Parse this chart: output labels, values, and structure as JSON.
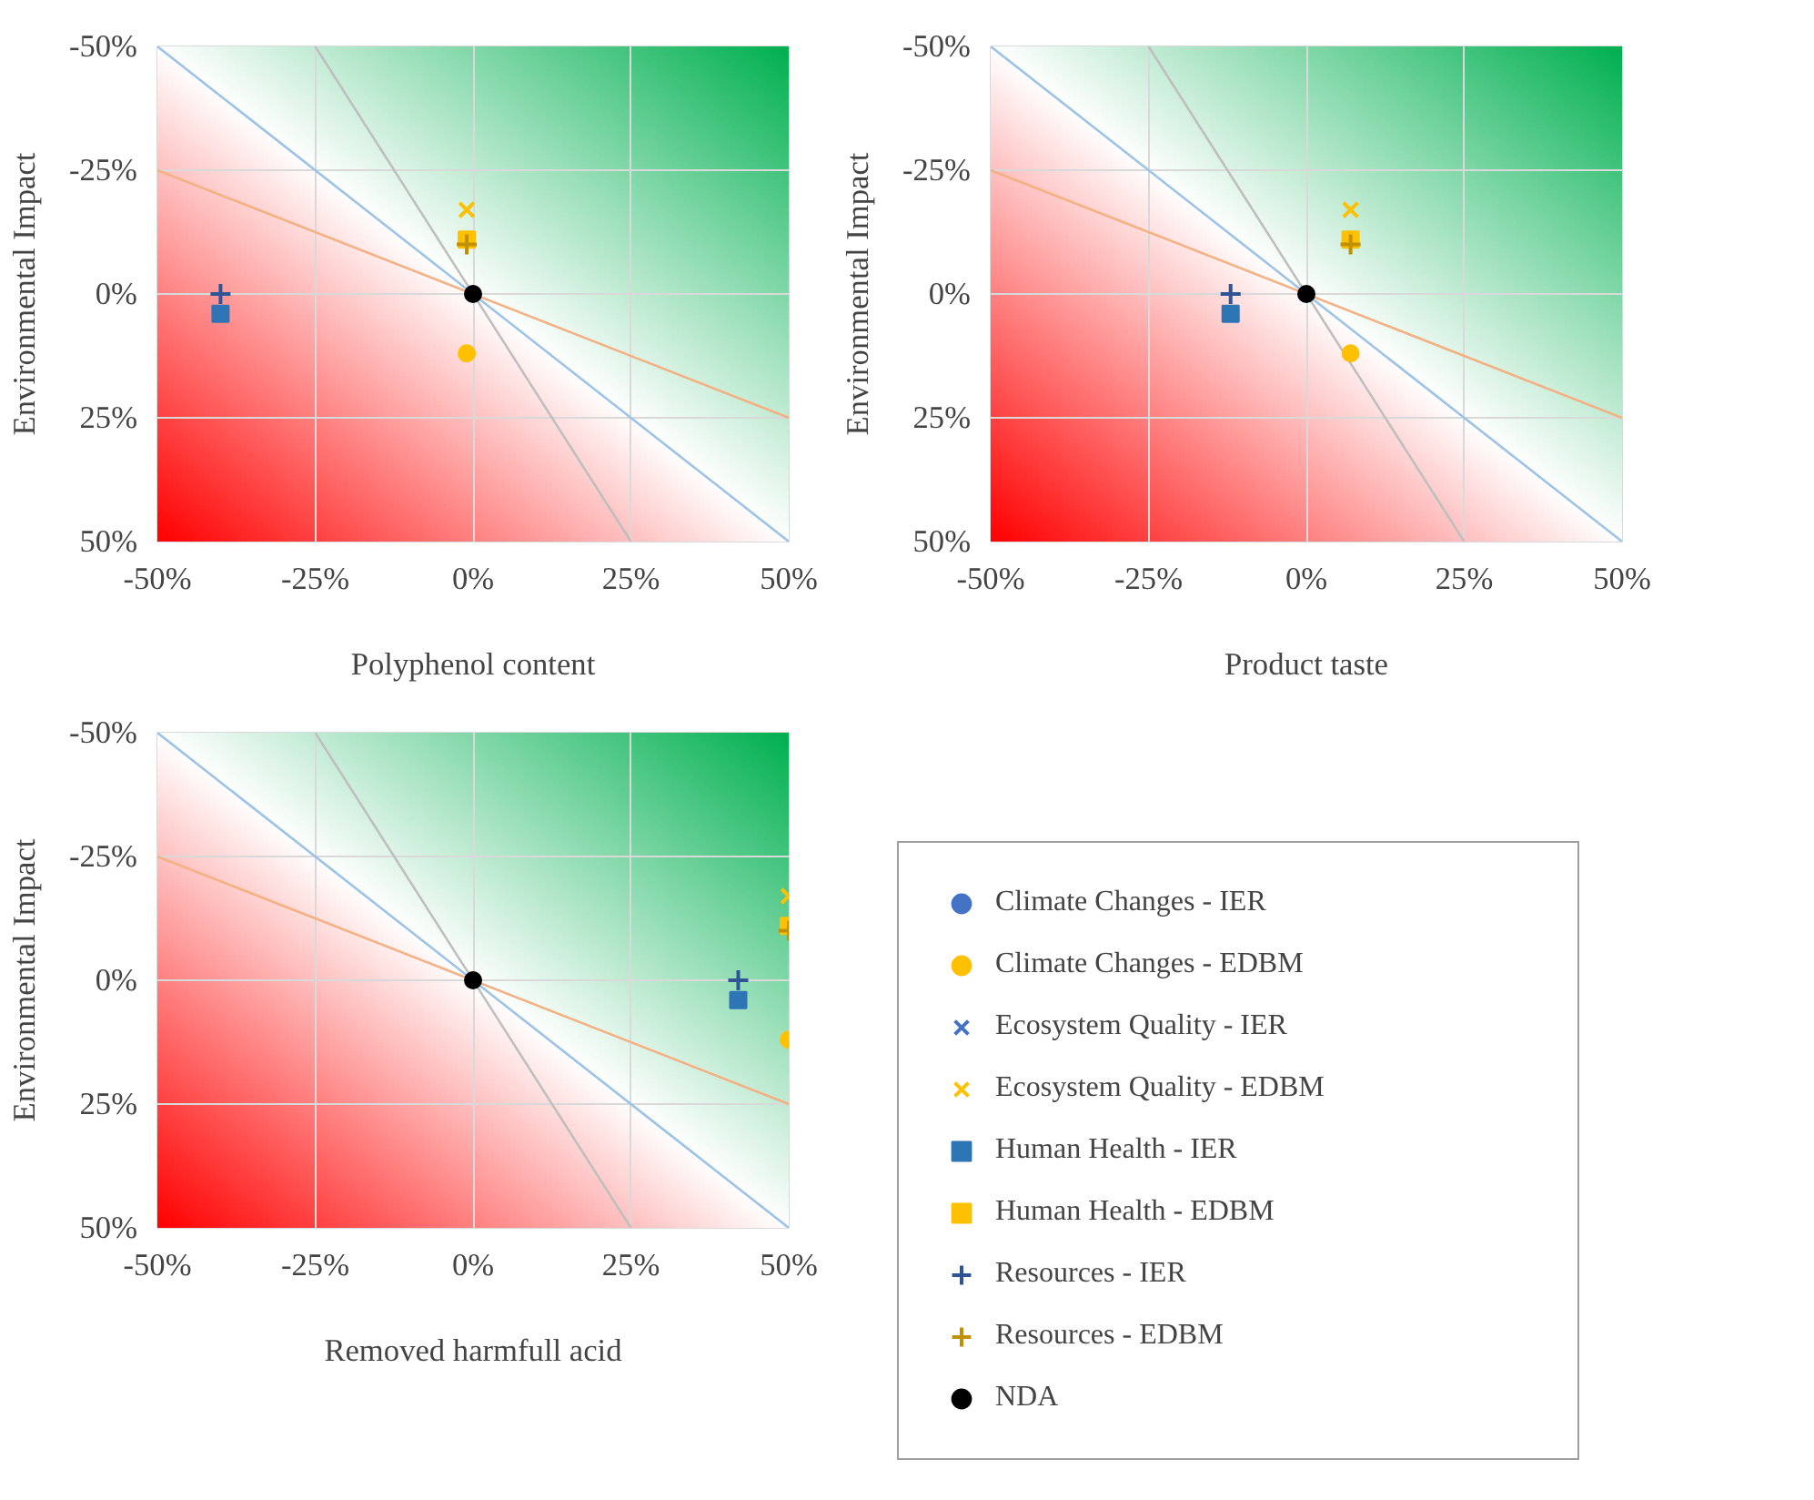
{
  "chart_data": [
    {
      "type": "scatter",
      "xlabel": "Polyphenol content",
      "ylabel": "Environmental Impact",
      "xlim": [
        -50,
        50
      ],
      "ylim": [
        50,
        -50
      ],
      "xticks": [
        {
          "value": -50,
          "label": "-50%"
        },
        {
          "value": -25,
          "label": "-25%"
        },
        {
          "value": 0,
          "label": "0%"
        },
        {
          "value": 25,
          "label": "25%"
        },
        {
          "value": 50,
          "label": "50%"
        }
      ],
      "yticks": [
        {
          "value": -50,
          "label": "-50%"
        },
        {
          "value": -25,
          "label": "-25%"
        },
        {
          "value": 0,
          "label": "0%"
        },
        {
          "value": 25,
          "label": "25%"
        },
        {
          "value": 50,
          "label": "50%"
        }
      ],
      "grid": true,
      "legend": false,
      "series": [
        {
          "type": "line",
          "color": "#9dc3e6",
          "marker": "none",
          "x": [
            -50,
            50
          ],
          "values": [
            -50,
            50
          ]
        },
        {
          "type": "line",
          "color": "#f4b183",
          "marker": "none",
          "x": [
            -50,
            50
          ],
          "values": [
            -25,
            25
          ]
        },
        {
          "type": "line",
          "color": "#bfbfbf",
          "marker": "none",
          "x": [
            -25,
            25
          ],
          "values": [
            -50,
            50
          ]
        },
        {
          "color": "#ffc000",
          "marker": "circle",
          "x": [
            -1
          ],
          "values": [
            12
          ]
        },
        {
          "color": "#ffc000",
          "marker": "cross",
          "x": [
            -1
          ],
          "values": [
            -17
          ]
        },
        {
          "color": "#2e75b6",
          "marker": "square",
          "x": [
            -40
          ],
          "values": [
            4
          ]
        },
        {
          "color": "#ffc000",
          "marker": "square",
          "x": [
            -1
          ],
          "values": [
            -11
          ]
        },
        {
          "color": "#2f5597",
          "marker": "plus",
          "x": [
            -40
          ],
          "values": [
            0
          ]
        },
        {
          "color": "#bf9000",
          "marker": "plus",
          "x": [
            -1
          ],
          "values": [
            -10
          ]
        },
        {
          "color": "#000000",
          "marker": "circle",
          "x": [
            0
          ],
          "values": [
            0
          ]
        }
      ]
    },
    {
      "type": "scatter",
      "xlabel": "Product taste",
      "ylabel": "Environmental Impact",
      "xlim": [
        -50,
        50
      ],
      "ylim": [
        50,
        -50
      ],
      "xticks": [
        {
          "value": -50,
          "label": "-50%"
        },
        {
          "value": -25,
          "label": "-25%"
        },
        {
          "value": 0,
          "label": "0%"
        },
        {
          "value": 25,
          "label": "25%"
        },
        {
          "value": 50,
          "label": "50%"
        }
      ],
      "yticks": [
        {
          "value": -50,
          "label": "-50%"
        },
        {
          "value": -25,
          "label": "-25%"
        },
        {
          "value": 0,
          "label": "0%"
        },
        {
          "value": 25,
          "label": "25%"
        },
        {
          "value": 50,
          "label": "50%"
        }
      ],
      "grid": true,
      "legend": false,
      "series": [
        {
          "type": "line",
          "color": "#9dc3e6",
          "marker": "none",
          "x": [
            -50,
            50
          ],
          "values": [
            -50,
            50
          ]
        },
        {
          "type": "line",
          "color": "#f4b183",
          "marker": "none",
          "x": [
            -50,
            50
          ],
          "values": [
            -25,
            25
          ]
        },
        {
          "type": "line",
          "color": "#bfbfbf",
          "marker": "none",
          "x": [
            -25,
            25
          ],
          "values": [
            -50,
            50
          ]
        },
        {
          "color": "#ffc000",
          "marker": "circle",
          "x": [
            7
          ],
          "values": [
            12
          ]
        },
        {
          "color": "#ffc000",
          "marker": "cross",
          "x": [
            7
          ],
          "values": [
            -17
          ]
        },
        {
          "color": "#2e75b6",
          "marker": "square",
          "x": [
            -12
          ],
          "values": [
            4
          ]
        },
        {
          "color": "#ffc000",
          "marker": "square",
          "x": [
            7
          ],
          "values": [
            -11
          ]
        },
        {
          "color": "#2f5597",
          "marker": "plus",
          "x": [
            -12
          ],
          "values": [
            0
          ]
        },
        {
          "color": "#bf9000",
          "marker": "plus",
          "x": [
            7
          ],
          "values": [
            -10
          ]
        },
        {
          "color": "#000000",
          "marker": "circle",
          "x": [
            0
          ],
          "values": [
            0
          ]
        }
      ]
    },
    {
      "type": "scatter",
      "xlabel": "Removed harmfull acid",
      "ylabel": "Environmental Impact",
      "xlim": [
        -50,
        50
      ],
      "ylim": [
        50,
        -50
      ],
      "xticks": [
        {
          "value": -50,
          "label": "-50%"
        },
        {
          "value": -25,
          "label": "-25%"
        },
        {
          "value": 0,
          "label": "0%"
        },
        {
          "value": 25,
          "label": "25%"
        },
        {
          "value": 50,
          "label": "50%"
        }
      ],
      "yticks": [
        {
          "value": -50,
          "label": "-50%"
        },
        {
          "value": -25,
          "label": "-25%"
        },
        {
          "value": 0,
          "label": "0%"
        },
        {
          "value": 25,
          "label": "25%"
        },
        {
          "value": 50,
          "label": "50%"
        }
      ],
      "grid": true,
      "legend": "right",
      "series": [
        {
          "type": "line",
          "color": "#9dc3e6",
          "marker": "none",
          "x": [
            -50,
            50
          ],
          "values": [
            -50,
            50
          ]
        },
        {
          "type": "line",
          "color": "#f4b183",
          "marker": "none",
          "x": [
            -50,
            50
          ],
          "values": [
            -25,
            25
          ]
        },
        {
          "type": "line",
          "color": "#bfbfbf",
          "marker": "none",
          "x": [
            -25,
            25
          ],
          "values": [
            -50,
            50
          ]
        },
        {
          "name": "Climate Changes - IER",
          "color": "#4472c4",
          "marker": "circle",
          "x": [
            null
          ],
          "values": [
            null
          ]
        },
        {
          "name": "Climate Changes - EDBM",
          "color": "#ffc000",
          "marker": "circle",
          "x": [
            50
          ],
          "values": [
            12
          ]
        },
        {
          "name": "Ecosystem Quality - IER",
          "color": "#4472c4",
          "marker": "cross",
          "x": [
            null
          ],
          "values": [
            null
          ]
        },
        {
          "name": "Ecosystem Quality - EDBM",
          "color": "#ffc000",
          "marker": "cross",
          "x": [
            50
          ],
          "values": [
            -17
          ]
        },
        {
          "name": "Human Health - IER",
          "color": "#2e75b6",
          "marker": "square",
          "x": [
            42
          ],
          "values": [
            4
          ]
        },
        {
          "name": "Human Health - EDBM",
          "color": "#ffc000",
          "marker": "square",
          "x": [
            50
          ],
          "values": [
            -11
          ]
        },
        {
          "name": "Resources - IER",
          "color": "#2f5597",
          "marker": "plus",
          "x": [
            42
          ],
          "values": [
            0
          ]
        },
        {
          "name": "Resources - EDBM",
          "color": "#bf9000",
          "marker": "plus",
          "x": [
            50
          ],
          "values": [
            -10
          ]
        },
        {
          "name": "NDA",
          "color": "#000000",
          "marker": "circle",
          "x": [
            0
          ],
          "values": [
            0
          ]
        }
      ]
    }
  ]
}
